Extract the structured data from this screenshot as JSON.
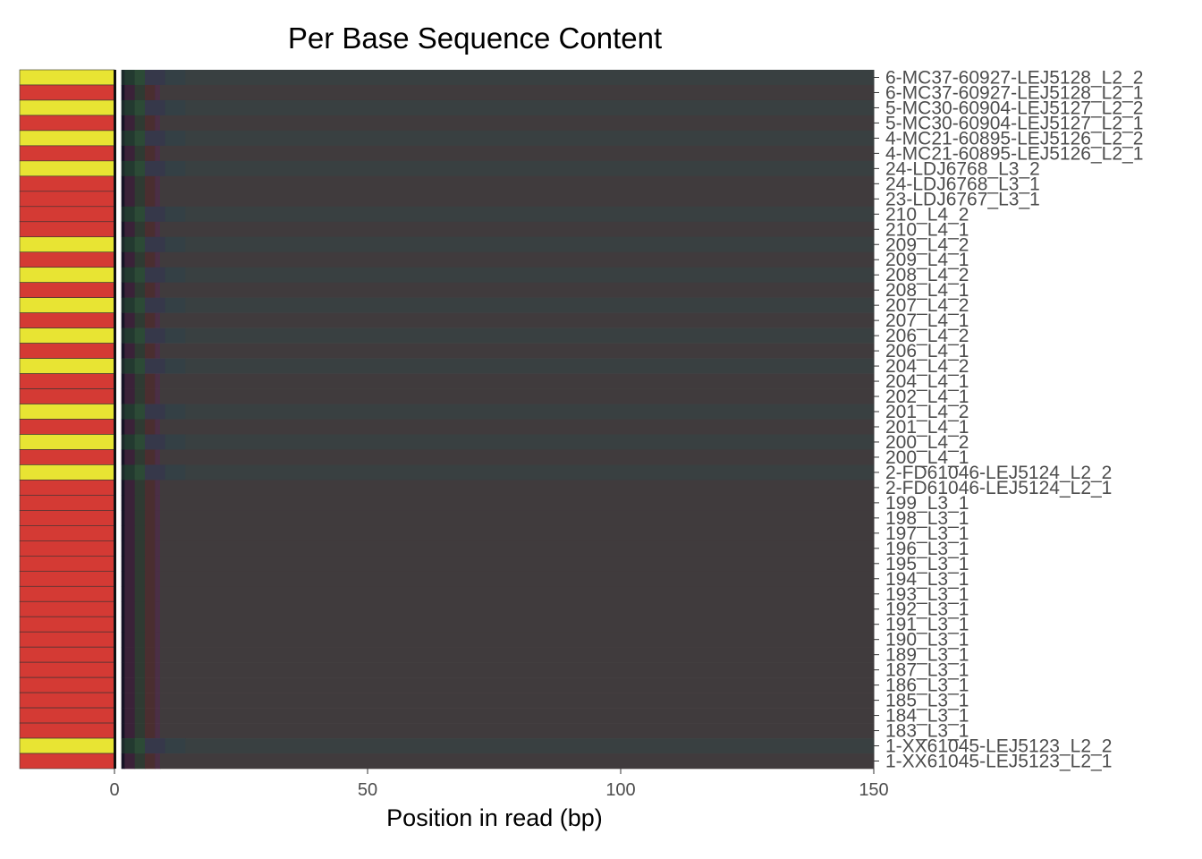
{
  "chart_data": {
    "type": "heatmap",
    "title": "Per Base Sequence Content",
    "xlabel": "Position in read (bp)",
    "ylabel": "",
    "xlim": [
      0,
      150
    ],
    "x_ticks": [
      "0",
      "50",
      "100",
      "150"
    ],
    "status_colors": {
      "fail": "#d43a34",
      "warn": "#e8e433"
    },
    "samples": [
      {
        "name": "6-MC37-60927-LEJ5128_L2_2",
        "status": "warn",
        "read": 2
      },
      {
        "name": "6-MC37-60927-LEJ5128_L2_1",
        "status": "fail",
        "read": 1
      },
      {
        "name": "5-MC30-60904-LEJ5127_L2_2",
        "status": "warn",
        "read": 2
      },
      {
        "name": "5-MC30-60904-LEJ5127_L2_1",
        "status": "fail",
        "read": 1
      },
      {
        "name": "4-MC21-60895-LEJ5126_L2_2",
        "status": "warn",
        "read": 2
      },
      {
        "name": "4-MC21-60895-LEJ5126_L2_1",
        "status": "fail",
        "read": 1
      },
      {
        "name": "24-LDJ6768_L3_2",
        "status": "warn",
        "read": 2
      },
      {
        "name": "24-LDJ6768_L3_1",
        "status": "fail",
        "read": 1
      },
      {
        "name": "23-LDJ6767_L3_1",
        "status": "fail",
        "read": 1
      },
      {
        "name": "210_L4_2",
        "status": "fail",
        "read": 2
      },
      {
        "name": "210_L4_1",
        "status": "fail",
        "read": 1
      },
      {
        "name": "209_L4_2",
        "status": "warn",
        "read": 2
      },
      {
        "name": "209_L4_1",
        "status": "fail",
        "read": 1
      },
      {
        "name": "208_L4_2",
        "status": "warn",
        "read": 2
      },
      {
        "name": "208_L4_1",
        "status": "fail",
        "read": 1
      },
      {
        "name": "207_L4_2",
        "status": "warn",
        "read": 2
      },
      {
        "name": "207_L4_1",
        "status": "fail",
        "read": 1
      },
      {
        "name": "206_L4_2",
        "status": "warn",
        "read": 2
      },
      {
        "name": "206_L4_1",
        "status": "fail",
        "read": 1
      },
      {
        "name": "204_L4_2",
        "status": "warn",
        "read": 2
      },
      {
        "name": "204_L4_1",
        "status": "fail",
        "read": 1
      },
      {
        "name": "202_L4_1",
        "status": "fail",
        "read": 1
      },
      {
        "name": "201_L4_2",
        "status": "warn",
        "read": 2
      },
      {
        "name": "201_L4_1",
        "status": "fail",
        "read": 1
      },
      {
        "name": "200_L4_2",
        "status": "warn",
        "read": 2
      },
      {
        "name": "200_L4_1",
        "status": "fail",
        "read": 1
      },
      {
        "name": "2-FD61046-LEJ5124_L2_2",
        "status": "warn",
        "read": 2
      },
      {
        "name": "2-FD61046-LEJ5124_L2_1",
        "status": "fail",
        "read": 1
      },
      {
        "name": "199_L3_1",
        "status": "fail",
        "read": 1
      },
      {
        "name": "198_L3_1",
        "status": "fail",
        "read": 1
      },
      {
        "name": "197_L3_1",
        "status": "fail",
        "read": 1
      },
      {
        "name": "196_L3_1",
        "status": "fail",
        "read": 1
      },
      {
        "name": "195_L3_1",
        "status": "fail",
        "read": 1
      },
      {
        "name": "194_L3_1",
        "status": "fail",
        "read": 1
      },
      {
        "name": "193_L3_1",
        "status": "fail",
        "read": 1
      },
      {
        "name": "192_L3_1",
        "status": "fail",
        "read": 1
      },
      {
        "name": "191_L3_1",
        "status": "fail",
        "read": 1
      },
      {
        "name": "190_L3_1",
        "status": "fail",
        "read": 1
      },
      {
        "name": "189_L3_1",
        "status": "fail",
        "read": 1
      },
      {
        "name": "187_L3_1",
        "status": "fail",
        "read": 1
      },
      {
        "name": "186_L3_1",
        "status": "fail",
        "read": 1
      },
      {
        "name": "185_L3_1",
        "status": "fail",
        "read": 1
      },
      {
        "name": "184_L3_1",
        "status": "fail",
        "read": 1
      },
      {
        "name": "183_L3_1",
        "status": "fail",
        "read": 1
      },
      {
        "name": "1-XX61045-LEJ5123_L2_2",
        "status": "warn",
        "read": 2
      },
      {
        "name": "1-XX61045-LEJ5123_L2_1",
        "status": "fail",
        "read": 1
      }
    ],
    "base_colors": {
      "read1": [
        {
          "x": [
            1,
            2
          ],
          "color": "#151325"
        },
        {
          "x": [
            2,
            4
          ],
          "color": "#3a2238"
        },
        {
          "x": [
            4,
            6
          ],
          "color": "#2f3a32"
        },
        {
          "x": [
            6,
            8
          ],
          "color": "#4a2e30"
        },
        {
          "x": [
            8,
            9
          ],
          "color": "#4b2f45"
        },
        {
          "x": [
            9,
            150
          ],
          "color": "#403b3d"
        }
      ],
      "read2": [
        {
          "x": [
            1,
            2
          ],
          "color": "#1b2a2a"
        },
        {
          "x": [
            2,
            4
          ],
          "color": "#233a30"
        },
        {
          "x": [
            4,
            6
          ],
          "color": "#2c4a36"
        },
        {
          "x": [
            6,
            10
          ],
          "color": "#36384a"
        },
        {
          "x": [
            10,
            14
          ],
          "color": "#344045"
        },
        {
          "x": [
            14,
            150
          ],
          "color": "#394041"
        }
      ]
    },
    "grid": false,
    "legend": "none"
  }
}
